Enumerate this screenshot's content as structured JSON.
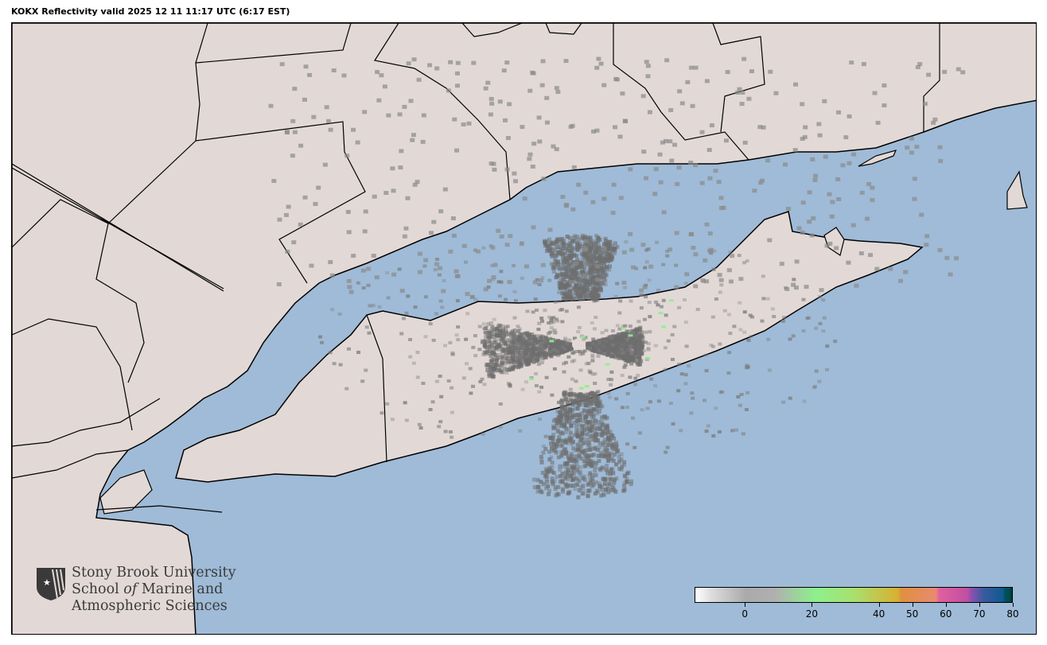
{
  "title": "KOKX Reflectivity valid 2025 12 11 11:17 UTC (6:17 EST)",
  "colors": {
    "water": "#9fbbd7",
    "land": "#e2d9d6",
    "border": "#000000",
    "echo": "#7c7c7c"
  },
  "logo": {
    "line1": "Stony Brook University",
    "line2_a": "School ",
    "line2_b": "of",
    "line2_c": " Marine and",
    "line3": "Atmospheric Sciences",
    "icon": "shield-star-icon"
  },
  "colorbar": {
    "min": -15,
    "max": 80,
    "ticks": [
      {
        "value": 0,
        "label": "0"
      },
      {
        "value": 20,
        "label": "20"
      },
      {
        "value": 40,
        "label": "40"
      },
      {
        "value": 50,
        "label": "50"
      },
      {
        "value": 60,
        "label": "60"
      },
      {
        "value": 70,
        "label": "70"
      },
      {
        "value": 80,
        "label": "80"
      }
    ]
  }
}
